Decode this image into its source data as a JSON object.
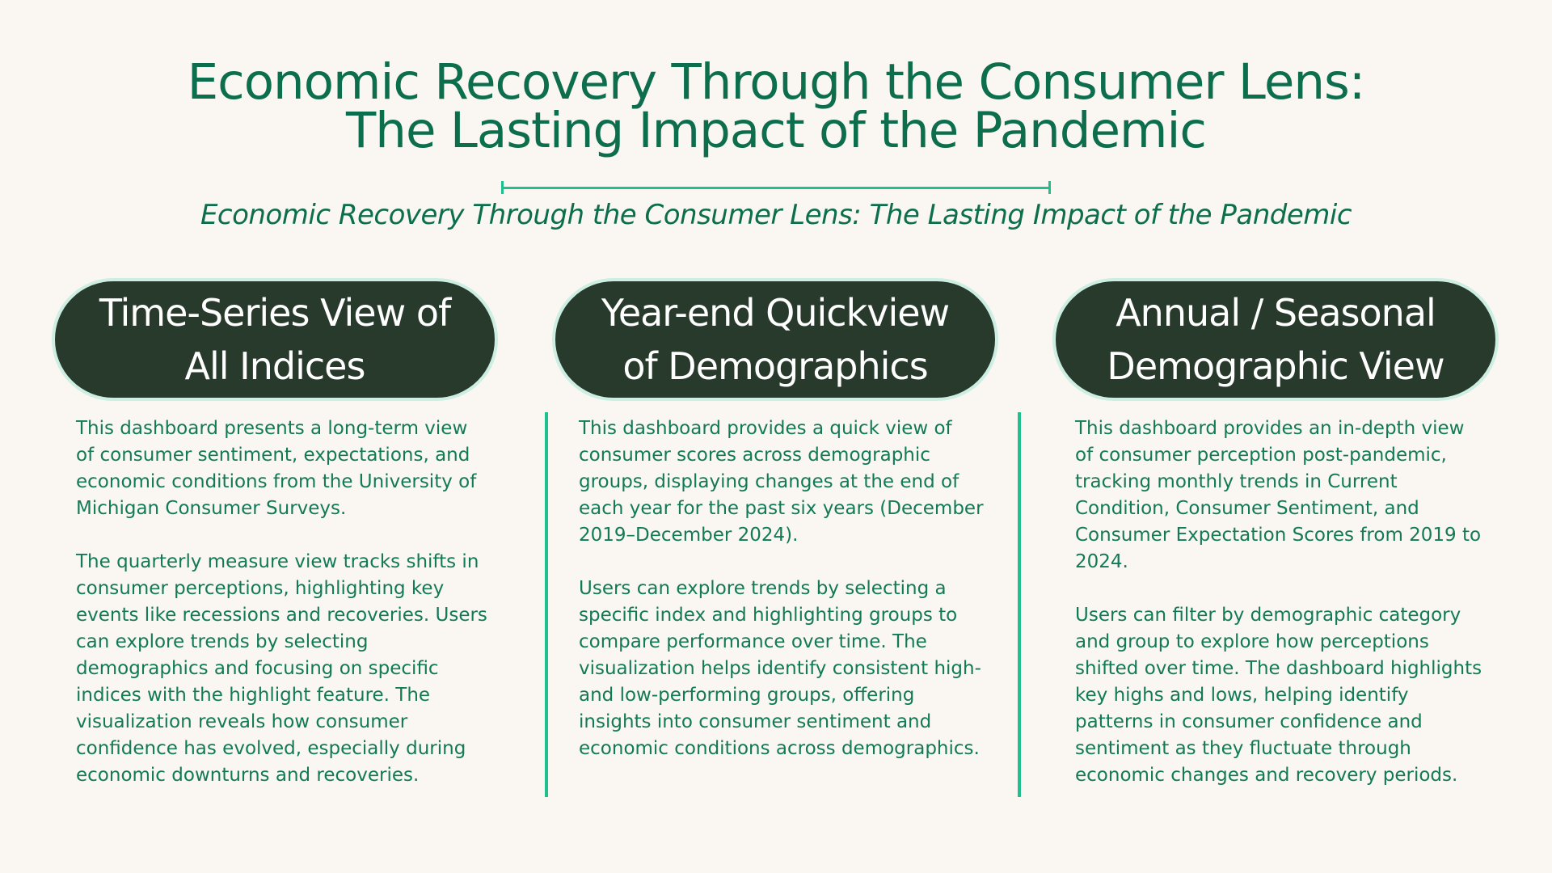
{
  "header": {
    "title_line1": "Economic Recovery Through the Consumer Lens:",
    "title_line2": "The Lasting Impact of the Pandemic",
    "subtitle": "Economic Recovery Through the Consumer Lens: The Lasting Impact of the Pandemic"
  },
  "columns": [
    {
      "title_line1": "Time-Series View of",
      "title_line2": "All Indices",
      "paragraphs": [
        "This dashboard presents a long-term view of consumer sentiment, expectations, and economic conditions from the University of Michigan Consumer Surveys.",
        "The quarterly measure view tracks shifts in consumer perceptions, highlighting key events like recessions and recoveries. Users can explore trends by selecting demographics and focusing on specific indices with the highlight feature. The visualization reveals how consumer confidence has evolved, especially during economic downturns and recoveries."
      ]
    },
    {
      "title_line1": "Year-end Quickview",
      "title_line2": "of Demographics",
      "paragraphs": [
        "This dashboard provides a quick view of consumer scores across demographic groups, displaying changes at the end of each year for the past six years (December 2019–December 2024).",
        "Users can explore trends by selecting a specific index and highlighting groups to compare performance over time. The visualization helps identify consistent high- and low-performing groups, offering insights into consumer sentiment and economic conditions across demographics."
      ]
    },
    {
      "title_line1": "Annual / Seasonal",
      "title_line2": "Demographic View",
      "paragraphs": [
        "This dashboard provides an in-depth view of consumer perception post-pandemic, tracking monthly trends in Current Condition, Consumer Sentiment, and Consumer Expectation Scores from 2019 to 2024.",
        "Users can filter by demographic category and group to explore how perceptions shifted over time. The dashboard highlights key highs and lows, helping identify patterns in consumer confidence and sentiment as they fluctuate through economic changes and recovery periods."
      ]
    }
  ],
  "colors": {
    "background": "#faf6f2",
    "title_green": "#0c6e4c",
    "body_green": "#127a57",
    "accent_green": "#1fc08e",
    "pill_dark": "#283a2b",
    "pill_border": "#cdeee2"
  }
}
